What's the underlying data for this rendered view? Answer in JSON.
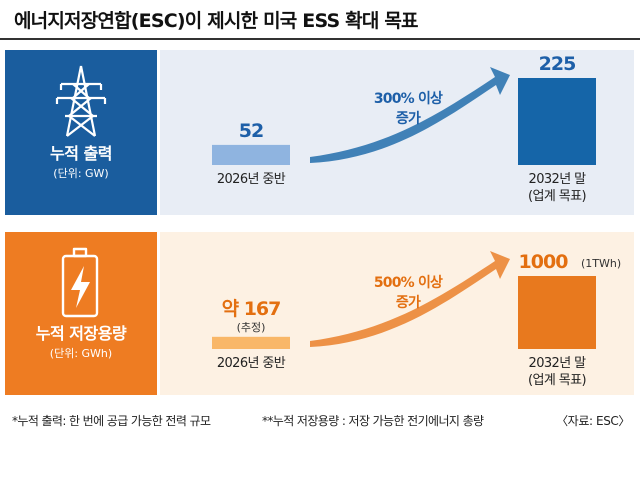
{
  "title": "에너지저장연합(ESC)이 제시한 미국 ESS 확대 목표",
  "colors": {
    "blue_panel": "#1a5d9e",
    "blue_bg": "#e8edf5",
    "blue_bar_start": "#8fb4e0",
    "blue_bar_end": "#1565a8",
    "blue_text": "#1d5fa8",
    "orange_panel": "#ee7c22",
    "orange_bg": "#fdf1e3",
    "orange_bar_start": "#f9b768",
    "orange_bar_end": "#e8791e",
    "orange_text": "#e36f10"
  },
  "icons": {
    "power": "transmission-tower-icon",
    "storage": "battery-bolt-icon"
  },
  "chart_data": [
    {
      "type": "bar",
      "label": "누적 출력",
      "unit": "(단위: GW)",
      "categories": [
        "2026년 중반",
        "2032년 말\n(업계 목표)"
      ],
      "values": [
        52,
        225
      ],
      "value_labels": [
        "52",
        "225"
      ],
      "value_notes": [
        "",
        ""
      ],
      "arrow_label": [
        "300% 이상",
        "증가"
      ]
    },
    {
      "type": "bar",
      "label": "누적 저장용량",
      "unit": "(단위: GWh)",
      "categories": [
        "2026년 중반",
        "2032년 말\n(업계 목표)"
      ],
      "values": [
        167,
        1000
      ],
      "value_labels": [
        "약 167",
        "1000"
      ],
      "value_notes": [
        "(추정)",
        "(1TWh)"
      ],
      "arrow_label": [
        "500% 이상",
        "증가"
      ]
    }
  ],
  "footnotes": {
    "note1": "*누적 출력: 한 번에 공급 가능한 전력 규모",
    "note2": "**누적 저장용량 : 저장 가능한 전기에너지 총량",
    "source": "〈자료: ESC〉"
  }
}
